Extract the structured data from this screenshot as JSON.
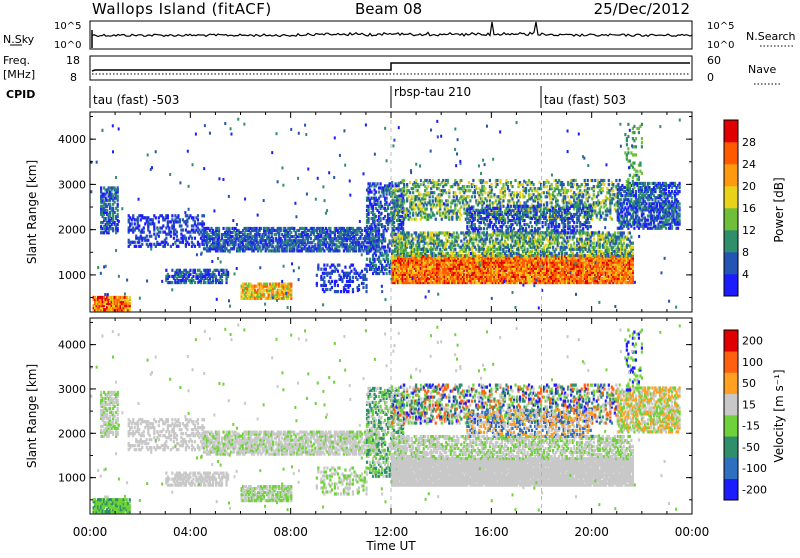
{
  "header": {
    "station": "Wallops Island (fitACF)",
    "beam": "Beam 08",
    "date": "25/Dec/2012"
  },
  "noise_panel": {
    "left_label": "N.Sky",
    "right_label": "N.Search",
    "left_ticks": [
      "10^5",
      "10^0"
    ],
    "right_ticks": [
      "10^5",
      "10^0"
    ]
  },
  "freq_panel": {
    "left_label_top": "Freq.",
    "left_label_units": "[MHz]",
    "left_ticks": [
      "18",
      "8"
    ],
    "right_label": "Nave",
    "right_ticks": [
      "60",
      "0"
    ]
  },
  "cpid": {
    "label": "CPID",
    "segments": [
      {
        "text": "tau (fast) -503"
      },
      {
        "text": "rbsp-tau 210"
      },
      {
        "text": "tau (fast) 503"
      }
    ]
  },
  "chart_data": [
    {
      "type": "heatmap",
      "name": "power",
      "ylabel": "Slant Range [km]",
      "y_ticks": [
        "1000",
        "2000",
        "3000",
        "4000"
      ],
      "y_values": [
        1000,
        2000,
        3000,
        4000
      ],
      "ylim": [
        180,
        4600
      ],
      "colorbar_label": "Power [dB]",
      "colorbar_ticks": [
        "4",
        "8",
        "12",
        "16",
        "20",
        "24",
        "28"
      ],
      "colorbar_colors": [
        "#1c1cff",
        "#2454b4",
        "#2f8f6a",
        "#6fbf3a",
        "#e8d21a",
        "#ff9a10",
        "#ff5a00",
        "#e00000"
      ]
    },
    {
      "type": "heatmap",
      "name": "velocity",
      "ylabel": "Slant Range [km]",
      "y_ticks": [
        "1000",
        "2000",
        "3000",
        "4000"
      ],
      "y_values": [
        1000,
        2000,
        3000,
        4000
      ],
      "ylim": [
        180,
        4600
      ],
      "colorbar_label": "Velocity [m s⁻¹]",
      "colorbar_ticks": [
        "200",
        "100",
        "50",
        "15",
        "-15",
        "-50",
        "-100",
        "-200"
      ],
      "colorbar_colors": [
        "#1c1cff",
        "#2f6fbf",
        "#2f8f6a",
        "#6fd23a",
        "#c8c8c8",
        "#ffa020",
        "#ff6010",
        "#e00000"
      ]
    }
  ],
  "x_axis": {
    "label": "Time UT",
    "ticks": [
      "00:00",
      "04:00",
      "08:00",
      "12:00",
      "16:00",
      "20:00",
      "00:00"
    ],
    "hours": [
      0,
      4,
      8,
      12,
      16,
      20,
      24
    ],
    "range_hours": [
      0,
      24
    ]
  }
}
